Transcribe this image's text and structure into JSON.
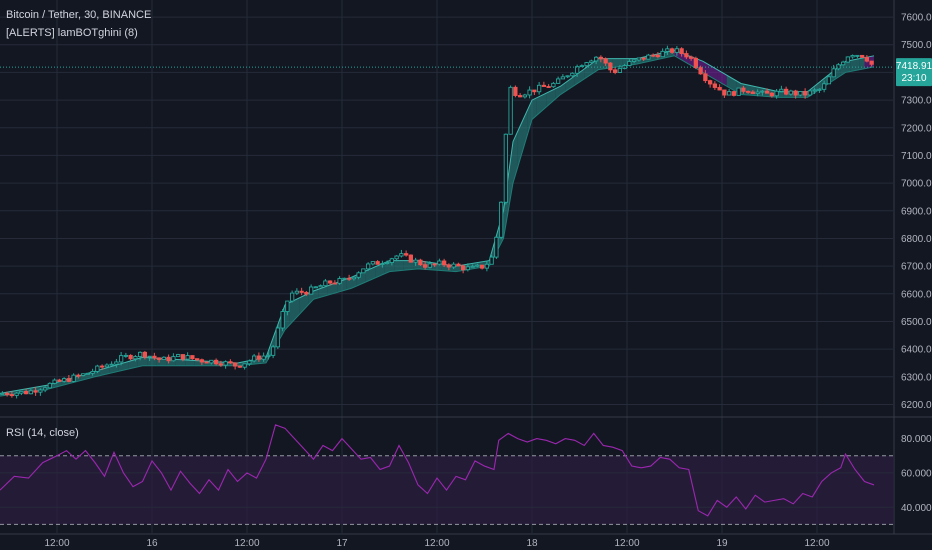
{
  "colors": {
    "background": "#131722",
    "grid": "#262b3a",
    "up": "#26a69a",
    "down": "#ef5350",
    "band_bull": "#2a8f8a",
    "band_bear": "#7b1fa2",
    "rsi_line": "#9c27b0",
    "rsi_band": "#2b1e3f",
    "price_line": "#26a69a",
    "text": "#b2b5be"
  },
  "legend": {
    "symbol": "Bitcoin / Tether, 30, BINANCE",
    "indicator": "[ALERTS] lamBOTghini (8)",
    "rsi": "RSI (14, close)"
  },
  "price_label": {
    "value": "7418.91",
    "countdown": "23:10"
  },
  "chart_data": [
    {
      "type": "candlestick",
      "title": "Bitcoin / Tether, 30, BINANCE",
      "y_ticks": [
        "7600.00",
        "7500.00",
        "7400.00",
        "7300.00",
        "7200.00",
        "7100.00",
        "7000.00",
        "6900.00",
        "6800.00",
        "6700.00",
        "6600.00",
        "6500.00",
        "6400.00",
        "6300.00",
        "6200.00"
      ],
      "ylim": [
        6180,
        7640
      ],
      "x_ticks": [
        "12:00",
        "16",
        "12:00",
        "17",
        "12:00",
        "18",
        "12:00",
        "19",
        "12:00"
      ],
      "last_price": 7418.91,
      "close_path": [
        [
          0,
          6240
        ],
        [
          6,
          6245
        ],
        [
          10,
          6270
        ],
        [
          14,
          6290
        ],
        [
          18,
          6310
        ],
        [
          22,
          6340
        ],
        [
          26,
          6370
        ],
        [
          30,
          6385
        ],
        [
          34,
          6360
        ],
        [
          38,
          6375
        ],
        [
          42,
          6360
        ],
        [
          46,
          6355
        ],
        [
          50,
          6340
        ],
        [
          54,
          6370
        ],
        [
          57,
          6380
        ],
        [
          59,
          6500
        ],
        [
          61,
          6600
        ],
        [
          65,
          6610
        ],
        [
          69,
          6640
        ],
        [
          73,
          6650
        ],
        [
          77,
          6700
        ],
        [
          81,
          6720
        ],
        [
          84,
          6740
        ],
        [
          87,
          6720
        ],
        [
          90,
          6700
        ],
        [
          93,
          6710
        ],
        [
          96,
          6700
        ],
        [
          99,
          6690
        ],
        [
          102,
          6700
        ],
        [
          104,
          6740
        ],
        [
          106,
          7000
        ],
        [
          107,
          7350
        ],
        [
          109,
          7320
        ],
        [
          113,
          7340
        ],
        [
          117,
          7360
        ],
        [
          120,
          7400
        ],
        [
          123,
          7440
        ],
        [
          126,
          7460
        ],
        [
          129,
          7400
        ],
        [
          132,
          7430
        ],
        [
          135,
          7450
        ],
        [
          139,
          7470
        ],
        [
          142,
          7480
        ],
        [
          145,
          7460
        ],
        [
          149,
          7370
        ],
        [
          153,
          7320
        ],
        [
          157,
          7340
        ],
        [
          161,
          7320
        ],
        [
          165,
          7330
        ],
        [
          169,
          7320
        ],
        [
          173,
          7340
        ],
        [
          176,
          7420
        ],
        [
          179,
          7470
        ],
        [
          182,
          7460
        ],
        [
          184,
          7419
        ]
      ],
      "band": [
        [
          0,
          6230,
          6240
        ],
        [
          10,
          6255,
          6270
        ],
        [
          20,
          6300,
          6320
        ],
        [
          30,
          6340,
          6370
        ],
        [
          40,
          6340,
          6360
        ],
        [
          50,
          6340,
          6350
        ],
        [
          56,
          6350,
          6370
        ],
        [
          60,
          6470,
          6560
        ],
        [
          66,
          6580,
          6610
        ],
        [
          74,
          6620,
          6660
        ],
        [
          82,
          6680,
          6720
        ],
        [
          88,
          6690,
          6720
        ],
        [
          96,
          6680,
          6700
        ],
        [
          103,
          6700,
          6720
        ],
        [
          106,
          6800,
          6900
        ],
        [
          108,
          7000,
          7150
        ],
        [
          112,
          7230,
          7300
        ],
        [
          118,
          7320,
          7350
        ],
        [
          126,
          7410,
          7450
        ],
        [
          134,
          7430,
          7450
        ],
        [
          142,
          7460,
          7480
        ],
        [
          148,
          7400,
          7440
        ],
        [
          156,
          7320,
          7360
        ],
        [
          164,
          7310,
          7330
        ],
        [
          170,
          7310,
          7330
        ],
        [
          178,
          7400,
          7440
        ],
        [
          184,
          7420,
          7460
        ]
      ]
    },
    {
      "type": "line",
      "title": "RSI (14, close)",
      "y_ticks": [
        "80.0000",
        "60.0000",
        "40.0000"
      ],
      "ylim": [
        25,
        92
      ],
      "overbought": 70,
      "oversold": 30,
      "band": [
        40,
        60
      ],
      "values": [
        [
          0,
          50
        ],
        [
          3,
          58
        ],
        [
          6,
          57
        ],
        [
          9,
          66
        ],
        [
          12,
          70
        ],
        [
          14,
          73
        ],
        [
          16,
          68
        ],
        [
          18,
          73
        ],
        [
          20,
          66
        ],
        [
          22,
          58
        ],
        [
          24,
          72
        ],
        [
          26,
          60
        ],
        [
          28,
          52
        ],
        [
          30,
          55
        ],
        [
          32,
          67
        ],
        [
          34,
          60
        ],
        [
          36,
          50
        ],
        [
          38,
          61
        ],
        [
          40,
          54
        ],
        [
          42,
          48
        ],
        [
          44,
          56
        ],
        [
          46,
          50
        ],
        [
          48,
          62
        ],
        [
          50,
          55
        ],
        [
          52,
          60
        ],
        [
          54,
          57
        ],
        [
          56,
          68
        ],
        [
          58,
          88
        ],
        [
          60,
          86
        ],
        [
          62,
          80
        ],
        [
          64,
          74
        ],
        [
          66,
          68
        ],
        [
          68,
          76
        ],
        [
          70,
          73
        ],
        [
          72,
          80
        ],
        [
          74,
          74
        ],
        [
          76,
          68
        ],
        [
          78,
          69
        ],
        [
          80,
          62
        ],
        [
          82,
          64
        ],
        [
          84,
          76
        ],
        [
          86,
          66
        ],
        [
          88,
          53
        ],
        [
          90,
          48
        ],
        [
          92,
          57
        ],
        [
          94,
          50
        ],
        [
          96,
          58
        ],
        [
          98,
          56
        ],
        [
          100,
          67
        ],
        [
          102,
          64
        ],
        [
          104,
          62
        ],
        [
          105,
          79
        ],
        [
          107,
          83
        ],
        [
          109,
          80
        ],
        [
          111,
          78
        ],
        [
          113,
          80
        ],
        [
          115,
          79
        ],
        [
          117,
          77
        ],
        [
          119,
          80
        ],
        [
          121,
          79
        ],
        [
          123,
          76
        ],
        [
          125,
          83
        ],
        [
          127,
          76
        ],
        [
          129,
          75
        ],
        [
          131,
          73
        ],
        [
          133,
          64
        ],
        [
          135,
          63
        ],
        [
          137,
          64
        ],
        [
          139,
          69
        ],
        [
          141,
          68
        ],
        [
          143,
          63
        ],
        [
          145,
          62
        ],
        [
          147,
          38
        ],
        [
          149,
          35
        ],
        [
          151,
          44
        ],
        [
          153,
          40
        ],
        [
          155,
          46
        ],
        [
          157,
          39
        ],
        [
          159,
          47
        ],
        [
          161,
          43
        ],
        [
          163,
          44
        ],
        [
          165,
          45
        ],
        [
          167,
          42
        ],
        [
          169,
          48
        ],
        [
          171,
          46
        ],
        [
          173,
          55
        ],
        [
          175,
          60
        ],
        [
          177,
          63
        ],
        [
          178,
          71
        ],
        [
          180,
          62
        ],
        [
          182,
          55
        ],
        [
          184,
          53
        ]
      ]
    }
  ]
}
